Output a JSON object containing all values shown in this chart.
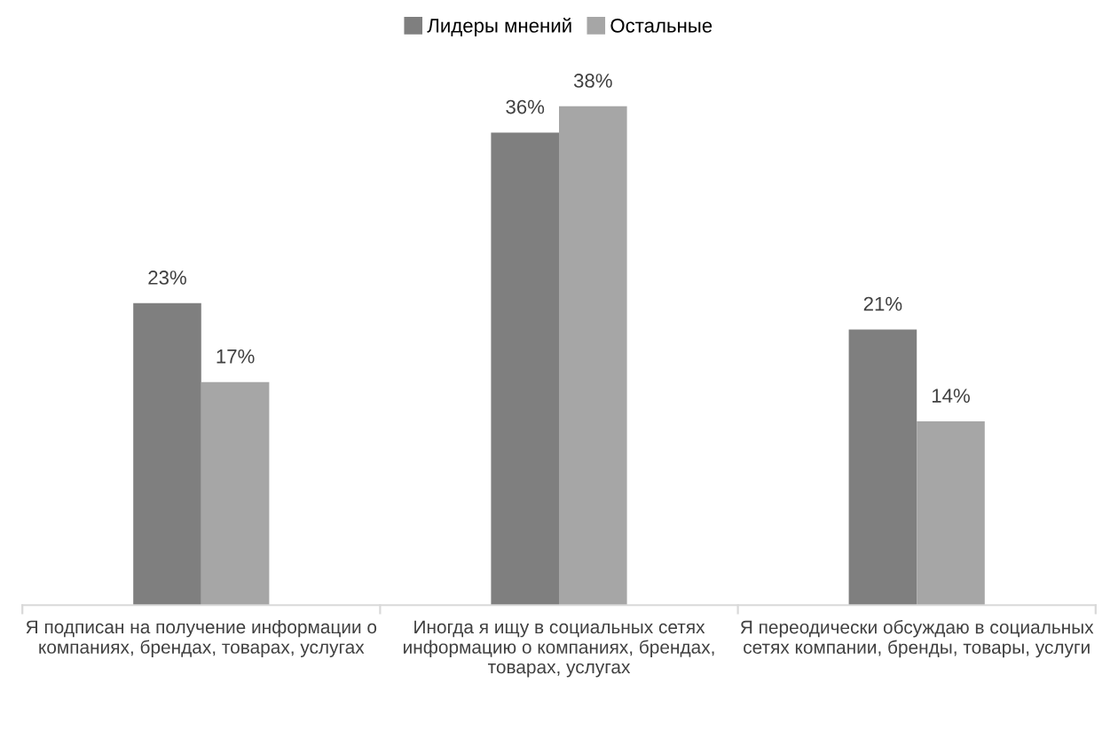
{
  "chart_data": {
    "type": "bar",
    "categories": [
      "Я подписан на получение информации о\nкомпаниях, брендах, товарах, услугах",
      "Иногда я ищу в социальных сетях\nинформацию о компаниях, брендах,\nтоварах, услугах",
      "Я переодически обсуждаю в социальных\nсетях компании, бренды, товары, услуги"
    ],
    "series": [
      {
        "name": "Лидеры мнений",
        "color": "#7f7f7f",
        "values": [
          23,
          36,
          21
        ],
        "value_labels": [
          "23%",
          "36%",
          "21%"
        ]
      },
      {
        "name": "Остальные",
        "color": "#a6a6a6",
        "values": [
          17,
          38,
          14
        ],
        "value_labels": [
          "17%",
          "38%",
          "14%"
        ]
      }
    ],
    "legend": "top",
    "grid": false
  }
}
